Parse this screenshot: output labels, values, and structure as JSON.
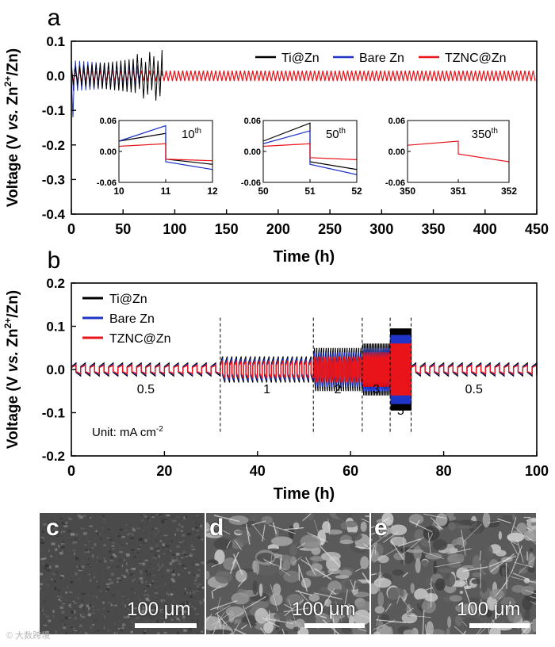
{
  "chart_data": [
    {
      "panel": "a",
      "type": "line",
      "xlabel": "Time (h)",
      "ylabel_parts": [
        "Voltage (V ",
        "vs.",
        " Zn",
        "2+",
        "/Zn)"
      ],
      "xlim": [
        0,
        450
      ],
      "ylim": [
        -0.4,
        0.1
      ],
      "xticks": [
        0,
        50,
        100,
        150,
        200,
        250,
        300,
        350,
        400,
        450
      ],
      "yticks": [
        0.1,
        0.0,
        -0.1,
        -0.2,
        -0.3,
        -0.4
      ],
      "ytick_labels": [
        "0.1",
        "0.0",
        "-0.1",
        "-0.2",
        "-0.3",
        "-0.4"
      ],
      "legend": [
        "Ti@Zn",
        "Bare Zn",
        "TZNC@Zn"
      ],
      "series": [
        {
          "name": "Ti@Zn",
          "color": "#000000",
          "end_h": 88,
          "amp_start": 0.025,
          "amp_end": 0.06,
          "short_circuit_after_h": 88
        },
        {
          "name": "Bare Zn",
          "color": "#1f35c8",
          "end_h": 66,
          "amp_start": 0.045,
          "amp_end": 0.03,
          "short_circuit_after_h": 66
        },
        {
          "name": "TZNC@Zn",
          "color": "#e8141a",
          "end_h": 450,
          "amp_start": 0.015,
          "amp_end": 0.015
        }
      ],
      "insets": [
        {
          "xlim": [
            10,
            12
          ],
          "xticks": [
            10,
            11,
            12
          ],
          "ylim": [
            -0.06,
            0.06
          ],
          "yticks": [
            "0.06",
            "0.00",
            "-0.06"
          ],
          "label": "10",
          "sup": "th",
          "series": {
            "Ti@Zn": [
              0.02,
              0.035,
              -0.015,
              -0.025
            ],
            "Bare Zn": [
              0.02,
              0.05,
              -0.02,
              -0.035
            ],
            "TZNC@Zn": [
              0.01,
              0.015,
              -0.015,
              -0.018
            ]
          }
        },
        {
          "xlim": [
            50,
            52
          ],
          "xticks": [
            50,
            51,
            52
          ],
          "ylim": [
            -0.06,
            0.06
          ],
          "yticks": [
            "0.06",
            "0.00",
            "-0.06"
          ],
          "label": "50",
          "sup": "th",
          "series": {
            "Ti@Zn": [
              0.02,
              0.055,
              -0.02,
              -0.035
            ],
            "Bare Zn": [
              0.015,
              0.04,
              -0.025,
              -0.045
            ],
            "TZNC@Zn": [
              0.01,
              0.015,
              -0.012,
              -0.016
            ]
          }
        },
        {
          "xlim": [
            350,
            352
          ],
          "xticks": [
            350,
            351,
            352
          ],
          "ylim": [
            -0.06,
            0.06
          ],
          "yticks": [
            "0.06",
            "0.00",
            "-0.06"
          ],
          "label": "350",
          "sup": "th",
          "series": {
            "TZNC@Zn": [
              0.012,
              0.02,
              -0.005,
              -0.02
            ]
          }
        }
      ]
    },
    {
      "panel": "b",
      "type": "line",
      "xlabel": "Time (h)",
      "ylabel_parts": [
        "Voltage (V ",
        "vs.",
        " Zn",
        "2+",
        "/Zn)"
      ],
      "xlim": [
        0,
        100
      ],
      "ylim": [
        -0.2,
        0.2
      ],
      "xticks": [
        0,
        20,
        40,
        60,
        80,
        100
      ],
      "yticks": [
        0.2,
        0.1,
        0.0,
        -0.1,
        -0.2
      ],
      "ytick_labels": [
        "0.2",
        "0.1",
        "0.0",
        "-0.1",
        "-0.2"
      ],
      "legend": [
        "Ti@Zn",
        "Bare Zn",
        "TZNC@Zn"
      ],
      "unit_prefix": "Unit: mA cm",
      "unit_sup": "-2",
      "segments": [
        {
          "label": "0.5",
          "start_h": 0,
          "end_h": 32,
          "period_h": 2
        },
        {
          "label": "1",
          "start_h": 32,
          "end_h": 52,
          "period_h": 1
        },
        {
          "label": "2",
          "start_h": 52,
          "end_h": 62.5,
          "period_h": 0.5
        },
        {
          "label": "3",
          "start_h": 62.5,
          "end_h": 68.5,
          "period_h": 0.3333
        },
        {
          "label": "5",
          "start_h": 68.5,
          "end_h": 73,
          "period_h": 0.2
        },
        {
          "label": "0.5",
          "start_h": 73,
          "end_h": 100,
          "period_h": 2
        }
      ],
      "amplitudes_V": {
        "Ti@Zn": [
          0.015,
          0.03,
          0.05,
          0.06,
          0.095,
          0.015
        ],
        "Bare Zn": [
          0.012,
          0.025,
          0.04,
          0.05,
          0.08,
          0.012
        ],
        "TZNC@Zn": [
          0.01,
          0.02,
          0.03,
          0.04,
          0.06,
          0.01
        ]
      },
      "dashed_boundaries_h": [
        32,
        52,
        62.5,
        68.5,
        73
      ]
    }
  ],
  "figure": {
    "panel_labels": [
      "a",
      "b"
    ],
    "colors": {
      "ti": "#000000",
      "bare": "#1f35c8",
      "tznc": "#e8141a"
    }
  },
  "micrographs": [
    {
      "label": "c",
      "scale": "100 μm",
      "texture": "flat"
    },
    {
      "label": "d",
      "scale": "100 μm",
      "texture": "dendrite"
    },
    {
      "label": "e",
      "scale": "100 μm",
      "texture": "dendrite-dense"
    }
  ]
}
